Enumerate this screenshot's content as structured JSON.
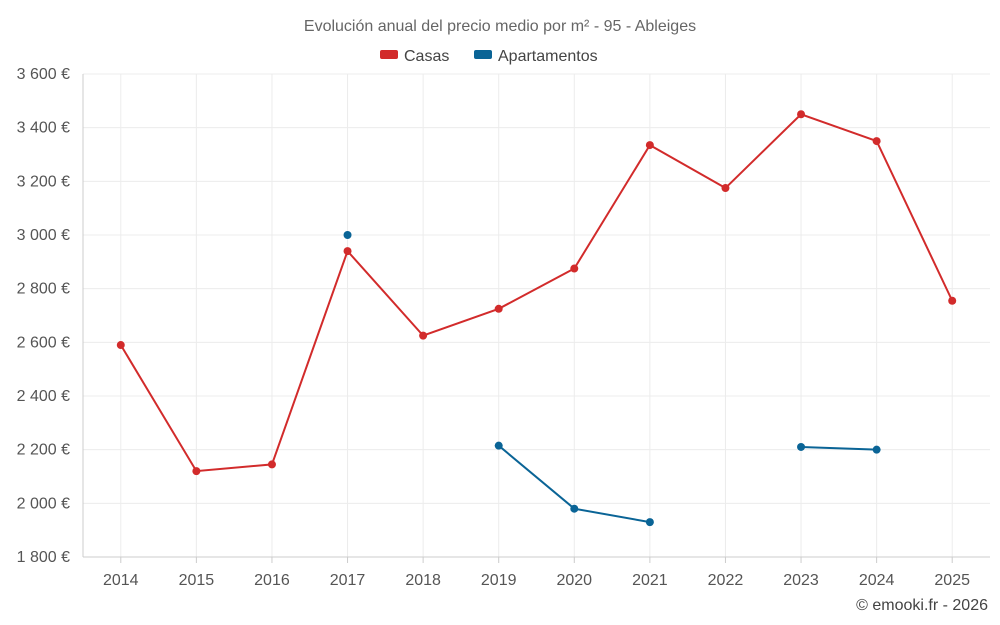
{
  "chart_data": {
    "type": "line",
    "title": "Evolución anual del precio medio por m² - 95 - Ableiges",
    "xlabel": "",
    "ylabel": "",
    "categories": [
      "2014",
      "2015",
      "2016",
      "2017",
      "2018",
      "2019",
      "2020",
      "2021",
      "2022",
      "2023",
      "2024",
      "2025"
    ],
    "ylim": [
      1800,
      3600
    ],
    "yticks": [
      1800,
      2000,
      2200,
      2400,
      2600,
      2800,
      3000,
      3200,
      3400,
      3600
    ],
    "ytick_labels": [
      "1 800 €",
      "2 000 €",
      "2 200 €",
      "2 400 €",
      "2 600 €",
      "2 800 €",
      "3 000 €",
      "3 200 €",
      "3 400 €",
      "3 600 €"
    ],
    "grid": true,
    "legend_position": "top-center",
    "series": [
      {
        "name": "Casas",
        "color": "#d22b2b",
        "values": [
          2590,
          2120,
          2145,
          2940,
          2625,
          2725,
          2875,
          3335,
          3175,
          3450,
          3350,
          2755
        ]
      },
      {
        "name": "Apartamentos",
        "color": "#0a6496",
        "values": [
          null,
          null,
          null,
          3000,
          null,
          2215,
          1980,
          1930,
          null,
          2210,
          2200,
          null
        ]
      }
    ]
  },
  "credit": "© emooki.fr - 2026"
}
